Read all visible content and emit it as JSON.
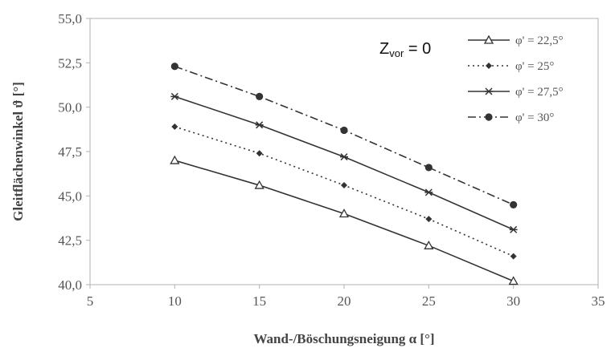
{
  "chart_data": {
    "type": "line",
    "title": "",
    "xlabel": "Wand-/Böschungsneigung α [°]",
    "ylabel": "Gleitflächenwinkel ϑ [°]",
    "xlim": [
      5,
      35
    ],
    "ylim": [
      40.0,
      55.0
    ],
    "xticks": [
      "5",
      "10",
      "15",
      "20",
      "25",
      "30",
      "35"
    ],
    "yticks": [
      "40,0",
      "42,5",
      "45,0",
      "47,5",
      "50,0",
      "52,5",
      "55,0"
    ],
    "x": [
      10,
      15,
      20,
      25,
      30
    ],
    "annotation": {
      "main": "Z",
      "sub": "vor",
      "rest": " = 0"
    },
    "grid": false,
    "legend_position": "top-right",
    "series": [
      {
        "name": "φ' = 22,5°",
        "values": [
          47.0,
          45.6,
          44.0,
          42.2,
          40.2
        ],
        "marker": "triangle-open",
        "dash": "solid",
        "color": "#333333"
      },
      {
        "name": "φ' = 25°",
        "values": [
          48.9,
          47.4,
          45.6,
          43.7,
          41.6
        ],
        "marker": "diamond",
        "dash": "dotted",
        "color": "#333333"
      },
      {
        "name": "φ' = 27,5°",
        "values": [
          50.6,
          49.0,
          47.2,
          45.2,
          43.1
        ],
        "marker": "asterisk",
        "dash": "solid",
        "color": "#333333"
      },
      {
        "name": "φ' = 30°",
        "values": [
          52.3,
          50.6,
          48.7,
          46.6,
          44.5
        ],
        "marker": "circle",
        "dash": "dashdot",
        "color": "#333333"
      }
    ]
  }
}
